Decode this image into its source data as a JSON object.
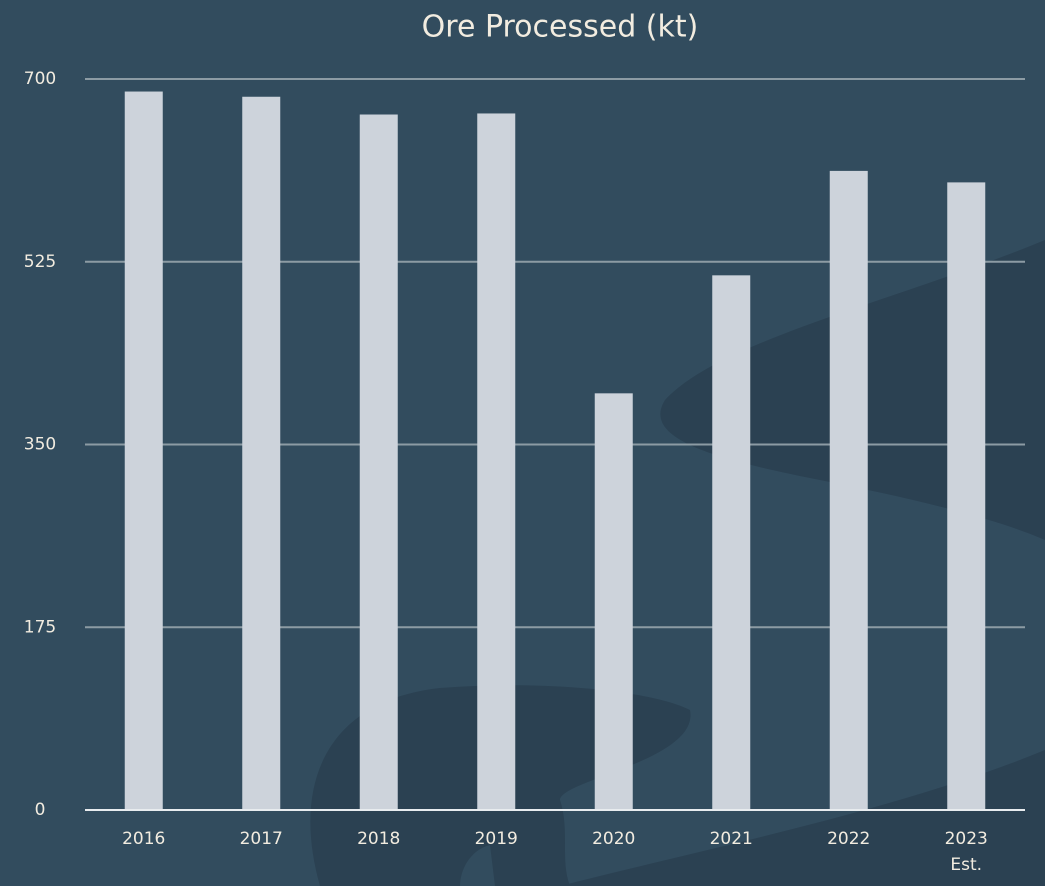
{
  "chart_data": {
    "type": "bar",
    "title": "Ore Processed (kt)",
    "categories": [
      "2016",
      "2017",
      "2018",
      "2019",
      "2020",
      "2021",
      "2022",
      "2023 Est."
    ],
    "values": [
      688,
      683,
      666,
      667,
      399,
      512,
      612,
      601
    ],
    "color": "#cdd3db",
    "ylim": [
      0,
      700
    ],
    "yticks": [
      0,
      175,
      350,
      525,
      700
    ],
    "grid": true
  }
}
